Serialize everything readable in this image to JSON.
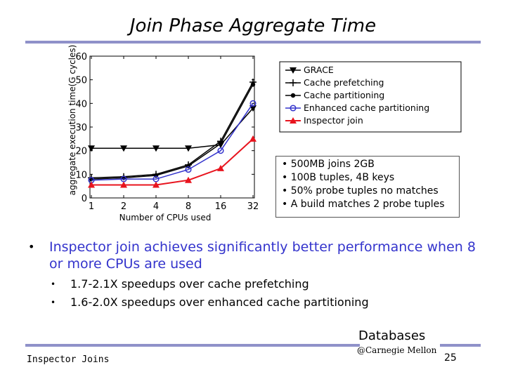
{
  "slide": {
    "title": "Join Phase Aggregate Time",
    "notes": [
      "• 500MB joins 2GB",
      "• 100B tuples, 4B keys",
      "• 50% probe tuples no matches",
      "• A build matches 2 probe tuples"
    ],
    "bullet_main": "Inspector join achieves significantly better performance when 8 or more CPUs are used",
    "bullet_marker": "•",
    "sub_bullets": [
      "1.7-2.1X speedups over cache prefetching",
      "1.6-2.0X speedups over enhanced cache partitioning"
    ],
    "footer_left": "Inspector Joins",
    "footer_logo_word": "Databases",
    "footer_logo_sub": "@Carnegie Mellon",
    "page_number": "25"
  },
  "colors": {
    "accent_bar": "#8f91c9",
    "bullet_text": "#3333cc",
    "enhanced": "#3333cc",
    "inspector": "#e8141e"
  },
  "chart_data": {
    "type": "line",
    "title": "",
    "xlabel": "Number of CPUs used",
    "ylabel": "aggregate execution time(G cycles)",
    "x": [
      "1",
      "2",
      "4",
      "8",
      "16",
      "32"
    ],
    "ylim": [
      0,
      60
    ],
    "yticks": [
      "0",
      "10",
      "20",
      "30",
      "40",
      "50",
      "60"
    ],
    "grid": false,
    "legend_position": "top-right",
    "series": [
      {
        "name": "GRACE",
        "marker": "triangle-down",
        "color": "#000000",
        "values": [
          21,
          21,
          21,
          21,
          22.5,
          38
        ]
      },
      {
        "name": "Cache prefetching",
        "marker": "plus",
        "color": "#000000",
        "values": [
          8.5,
          9,
          10,
          14,
          24,
          49
        ]
      },
      {
        "name": "Cache partitioning",
        "marker": "dot",
        "color": "#000000",
        "values": [
          8,
          8.5,
          9.5,
          13.5,
          23,
          48
        ]
      },
      {
        "name": "Enhanced cache partitioning",
        "marker": "circle",
        "color": "#3333cc",
        "values": [
          7.5,
          8,
          8,
          12,
          20,
          40
        ]
      },
      {
        "name": "Inspector join",
        "marker": "triangle-up",
        "color": "#e8141e",
        "values": [
          5.5,
          5.5,
          5.5,
          7.5,
          12.5,
          25
        ]
      }
    ]
  }
}
